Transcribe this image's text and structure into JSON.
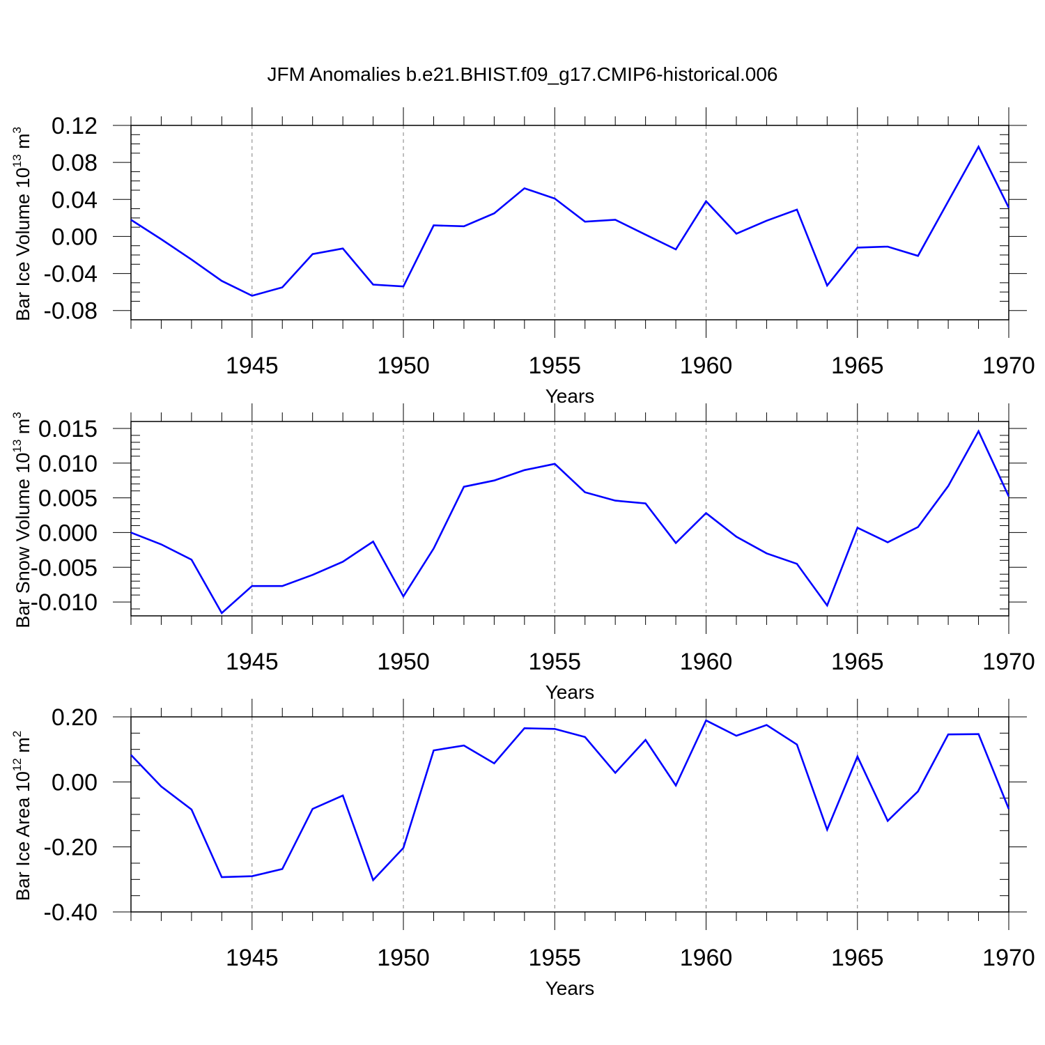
{
  "figure_title": "JFM Anomalies b.e21.BHIST.f09_g17.CMIP6-historical.006",
  "colors": {
    "line": "#0000ff",
    "axis": "#000000",
    "grid": "#7f7f7f"
  },
  "chart_data": [
    {
      "type": "line",
      "title": "",
      "ylabel": {
        "main": "Bar Ice Volume 10",
        "exponent": "13",
        "unit": "m",
        "unit_exponent": "3"
      },
      "xlabel": "Years",
      "xlim": [
        1941,
        1970
      ],
      "ylim": [
        -0.09,
        0.12
      ],
      "y_ticks": [
        0.12,
        0.08,
        0.04,
        0.0,
        -0.04,
        -0.08
      ],
      "y_tick_labels": [
        "0.12",
        "0.08",
        "0.04",
        "0.00",
        "-0.04",
        "-0.08"
      ],
      "y_minor_step": 0.01,
      "x_ticks": [
        1945,
        1950,
        1955,
        1960,
        1965,
        1970
      ],
      "x_tick_labels": [
        "1945",
        "1950",
        "1955",
        "1960",
        "1965",
        "1970"
      ],
      "grid": "vertical dashed at labeled years",
      "x": [
        1941,
        1942,
        1943,
        1944,
        1945,
        1946,
        1947,
        1948,
        1949,
        1950,
        1951,
        1952,
        1953,
        1954,
        1955,
        1956,
        1957,
        1958,
        1959,
        1960,
        1961,
        1962,
        1963,
        1964,
        1965,
        1966,
        1967,
        1968,
        1969,
        1970
      ],
      "series": [
        {
          "values": [
            0.018,
            -0.003,
            -0.025,
            -0.048,
            -0.064,
            -0.055,
            -0.019,
            -0.013,
            -0.052,
            -0.054,
            0.012,
            0.011,
            0.025,
            0.052,
            0.041,
            0.016,
            0.018,
            0.002,
            -0.014,
            0.038,
            0.003,
            0.017,
            0.029,
            -0.053,
            -0.012,
            -0.011,
            -0.021,
            0.038,
            0.097,
            0.031
          ]
        }
      ]
    },
    {
      "type": "line",
      "title": "",
      "ylabel": {
        "main": "Bar Snow Volume 10",
        "exponent": "13",
        "unit": "m",
        "unit_exponent": "3"
      },
      "xlabel": "Years",
      "xlim": [
        1941,
        1970
      ],
      "ylim": [
        -0.012,
        0.016
      ],
      "y_ticks": [
        0.015,
        0.01,
        0.005,
        0.0,
        -0.005,
        -0.01
      ],
      "y_tick_labels": [
        "0.015",
        "0.010",
        "0.005",
        "0.000",
        "-0.005",
        "-0.010"
      ],
      "y_minor_step": 0.001,
      "x_ticks": [
        1945,
        1950,
        1955,
        1960,
        1965,
        1970
      ],
      "x_tick_labels": [
        "1945",
        "1950",
        "1955",
        "1960",
        "1965",
        "1970"
      ],
      "grid": "vertical dashed at labeled years",
      "x": [
        1941,
        1942,
        1943,
        1944,
        1945,
        1946,
        1947,
        1948,
        1949,
        1950,
        1951,
        1952,
        1953,
        1954,
        1955,
        1956,
        1957,
        1958,
        1959,
        1960,
        1961,
        1962,
        1963,
        1964,
        1965,
        1966,
        1967,
        1968,
        1969,
        1970
      ],
      "series": [
        {
          "values": [
            0.0,
            -0.0017,
            -0.0039,
            -0.0116,
            -0.0077,
            -0.0077,
            -0.0061,
            -0.0042,
            -0.0013,
            -0.0092,
            -0.0023,
            0.0066,
            0.0075,
            0.009,
            0.0099,
            0.0058,
            0.0046,
            0.0042,
            -0.0015,
            0.0028,
            -0.0006,
            -0.003,
            -0.0045,
            -0.0105,
            0.0007,
            -0.0014,
            0.0008,
            0.0067,
            0.0146,
            0.0052
          ]
        }
      ]
    },
    {
      "type": "line",
      "title": "",
      "ylabel": {
        "main": "Bar Ice Area 10",
        "exponent": "12",
        "unit": "m",
        "unit_exponent": "2"
      },
      "xlabel": "Years",
      "xlim": [
        1941,
        1970
      ],
      "ylim": [
        -0.4,
        0.2
      ],
      "y_ticks": [
        0.2,
        0.0,
        -0.2,
        -0.4
      ],
      "y_tick_labels": [
        "0.20",
        "0.00",
        "-0.20",
        "-0.40"
      ],
      "y_minor_step": 0.05,
      "x_ticks": [
        1945,
        1950,
        1955,
        1960,
        1965,
        1970
      ],
      "x_tick_labels": [
        "1945",
        "1950",
        "1955",
        "1960",
        "1965",
        "1970"
      ],
      "grid": "vertical dashed at labeled years",
      "x": [
        1941,
        1942,
        1943,
        1944,
        1945,
        1946,
        1947,
        1948,
        1949,
        1950,
        1951,
        1952,
        1953,
        1954,
        1955,
        1956,
        1957,
        1958,
        1959,
        1960,
        1961,
        1962,
        1963,
        1964,
        1965,
        1966,
        1967,
        1968,
        1969,
        1970
      ],
      "series": [
        {
          "values": [
            0.083,
            -0.014,
            -0.085,
            -0.293,
            -0.29,
            -0.268,
            -0.083,
            -0.042,
            -0.302,
            -0.203,
            0.097,
            0.112,
            0.057,
            0.165,
            0.163,
            0.138,
            0.028,
            0.129,
            -0.011,
            0.189,
            0.142,
            0.175,
            0.115,
            -0.147,
            0.078,
            -0.12,
            -0.029,
            0.146,
            0.147,
            -0.083
          ]
        }
      ]
    }
  ]
}
